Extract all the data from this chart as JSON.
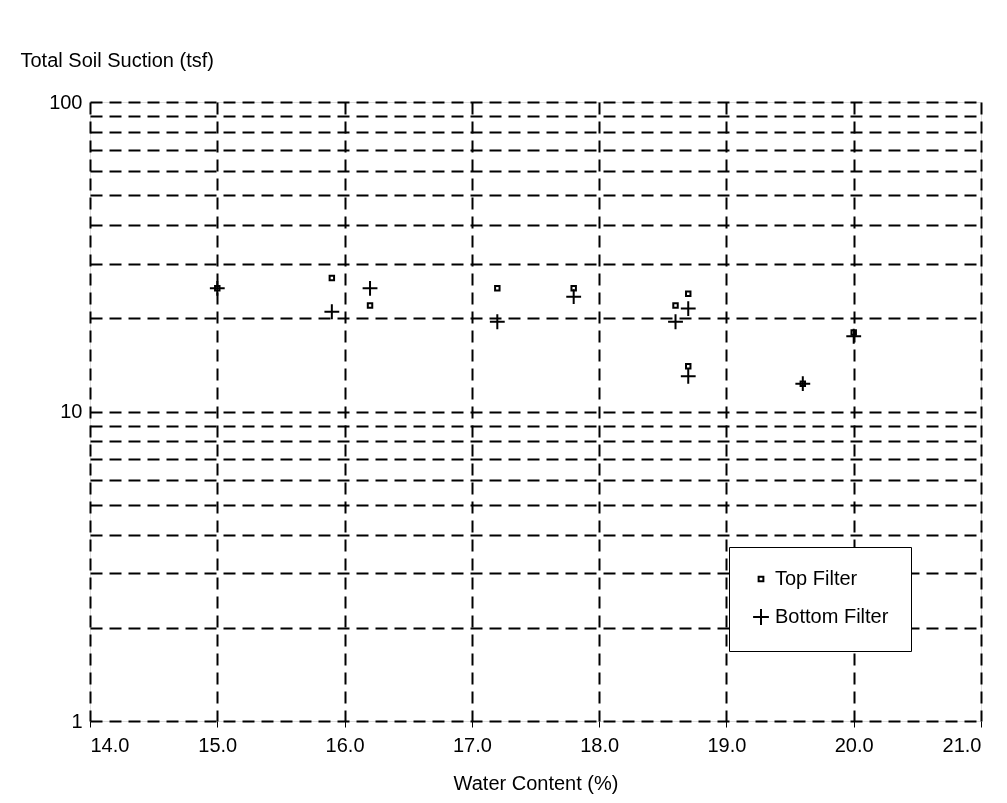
{
  "chart_data": {
    "type": "scatter",
    "xlabel": "Water Content (%)",
    "ylabel": "Total Soil Suction (tsf)",
    "series": [
      {
        "name": "Top Filter",
        "color": "#000000",
        "marker": "square",
        "x": [
          15.0,
          15.9,
          16.2,
          17.2,
          17.8,
          18.6,
          18.7,
          18.7,
          19.6,
          20.0
        ],
        "values": [
          25,
          27,
          22,
          25,
          25,
          22,
          24,
          14,
          12.3,
          18
        ]
      },
      {
        "name": "Bottom Filter",
        "color": "#000000",
        "marker": "cross",
        "x": [
          15.0,
          15.9,
          16.2,
          17.2,
          17.8,
          18.6,
          18.7,
          18.7,
          19.6,
          20.0
        ],
        "values": [
          25,
          21,
          25,
          19.5,
          23.5,
          19.5,
          21.5,
          13,
          12.3,
          17.5
        ]
      }
    ],
    "log": "y",
    "xlim": [
      14,
      21
    ],
    "ylim": [
      1,
      100
    ],
    "xticks": [
      {
        "value": 14,
        "label": "14.0"
      },
      {
        "value": 15,
        "label": "15.0"
      },
      {
        "value": 16,
        "label": "16.0"
      },
      {
        "value": 17,
        "label": "17.0"
      },
      {
        "value": 18,
        "label": "18.0"
      },
      {
        "value": 19,
        "label": "19.0"
      },
      {
        "value": 20,
        "label": "20.0"
      },
      {
        "value": 21,
        "label": "21.0"
      }
    ],
    "yticks": [
      1,
      {
        "value": 2,
        "label": null
      },
      {
        "value": 3,
        "label": null
      },
      {
        "value": 4,
        "label": null
      },
      {
        "value": 5,
        "label": null
      },
      {
        "value": 6,
        "label": null
      },
      {
        "value": 7,
        "label": null
      },
      {
        "value": 8,
        "label": null
      },
      {
        "value": 9,
        "label": null
      },
      10,
      {
        "value": 20,
        "label": null
      },
      {
        "value": 30,
        "label": null
      },
      {
        "value": 40,
        "label": null
      },
      {
        "value": 50,
        "label": null
      },
      {
        "value": 60,
        "label": null
      },
      {
        "value": 70,
        "label": null
      },
      {
        "value": 80,
        "label": null
      },
      {
        "value": 90,
        "label": null
      },
      100
    ],
    "grid": true,
    "legend": "bottom right"
  }
}
